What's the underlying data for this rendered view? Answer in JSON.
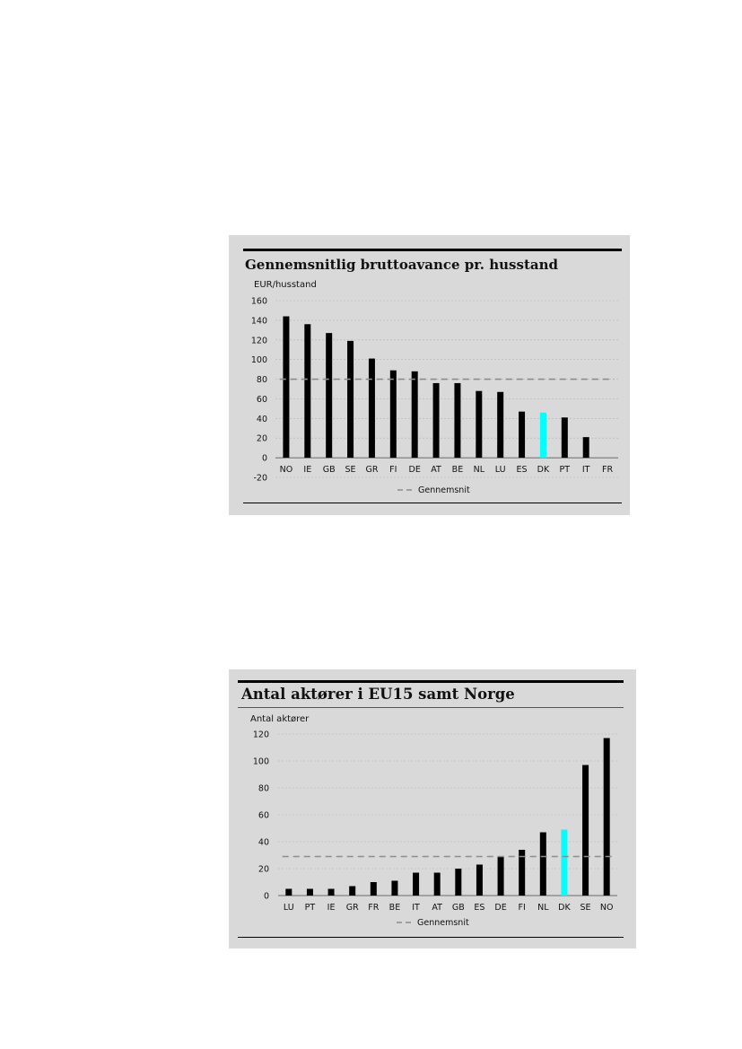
{
  "charts": [
    {
      "title": "Gennemsnitlig bruttoavance pr. husstand",
      "unit_label": "EUR/husstand",
      "legend_label": "Gennemsnit"
    },
    {
      "title": "Antal aktører i EU15 samt Norge",
      "unit_label": "Antal  aktører",
      "legend_label": "Gennemsnit"
    }
  ],
  "chart_data": [
    {
      "type": "bar",
      "title": "Gennemsnitlig bruttoavance pr. husstand",
      "ylabel": "EUR/husstand",
      "categories": [
        "NO",
        "IE",
        "GB",
        "SE",
        "GR",
        "FI",
        "DE",
        "AT",
        "BE",
        "NL",
        "LU",
        "ES",
        "DK",
        "PT",
        "IT",
        "FR"
      ],
      "values": [
        144,
        136,
        127,
        119,
        101,
        89,
        88,
        76,
        76,
        68,
        67,
        47,
        46,
        41,
        21,
        0
      ],
      "highlight_category": "DK",
      "highlight_color": "#00ffff",
      "bar_color": "#000000",
      "average": 80,
      "average_label": "Gennemsnit",
      "ylim": [
        -20,
        160
      ],
      "yticks": [
        -20,
        0,
        20,
        40,
        60,
        80,
        100,
        120,
        140,
        160
      ],
      "grid": true,
      "legend_position": "bottom-center"
    },
    {
      "type": "bar",
      "title": "Antal aktører i EU15 samt Norge",
      "ylabel": "Antal  aktører",
      "categories": [
        "LU",
        "PT",
        "IE",
        "GR",
        "FR",
        "BE",
        "IT",
        "AT",
        "GB",
        "ES",
        "DE",
        "FI",
        "NL",
        "DK",
        "SE",
        "NO"
      ],
      "values": [
        5,
        5,
        5,
        7,
        10,
        11,
        17,
        17,
        20,
        23,
        29,
        34,
        47,
        49,
        97,
        117
      ],
      "highlight_category": "DK",
      "highlight_color": "#00ffff",
      "bar_color": "#000000",
      "average": 29,
      "average_label": "Gennemsnit",
      "ylim": [
        0,
        120
      ],
      "yticks": [
        0,
        20,
        40,
        60,
        80,
        100,
        120
      ],
      "grid": true,
      "legend_position": "bottom-center"
    }
  ]
}
